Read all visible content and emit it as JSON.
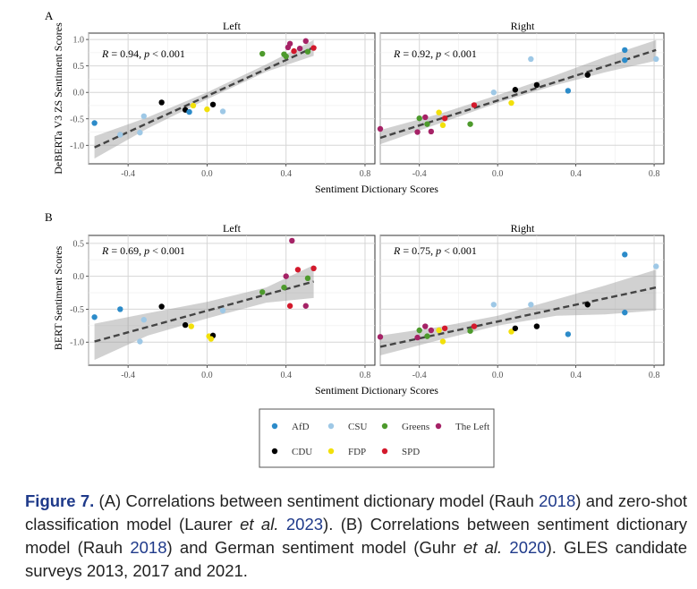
{
  "chart_data": [
    {
      "type": "scatter",
      "panel_label": "A",
      "ylabel": "DeBERTa V3 ZS Sentiment Scores",
      "xlabel": "Sentiment Dictionary Scores",
      "xlim": [
        -0.6,
        0.85
      ],
      "ylim": [
        -1.35,
        1.12
      ],
      "xticks": [
        "-0.4",
        "0.0",
        "0.4",
        "0.8"
      ],
      "xtick_values": [
        -0.4,
        0.0,
        0.4,
        0.8
      ],
      "yticks": [
        "1.0",
        "0.5",
        "0.0",
        "-0.5",
        "-1.0"
      ],
      "ytick_values": [
        1.0,
        0.5,
        0.0,
        -0.5,
        -1.0
      ],
      "facets": [
        {
          "title": "Left",
          "annotation": {
            "r": "0.94",
            "p": "0.001"
          },
          "fit": {
            "x0": -0.57,
            "x1": 0.54,
            "y0": -1.04,
            "y1": 0.85
          },
          "band": {
            "x": [
              -0.57,
              -0.3,
              0.0,
              0.3,
              0.54
            ],
            "lo": [
              -1.25,
              -0.68,
              -0.13,
              0.39,
              0.69
            ],
            "hi": [
              -0.83,
              -0.47,
              -0.0,
              0.53,
              0.99
            ]
          },
          "points": [
            {
              "x": -0.57,
              "y": -0.58,
              "party": "AfD"
            },
            {
              "x": -0.44,
              "y": -0.8,
              "party": "CSU"
            },
            {
              "x": -0.32,
              "y": -0.45,
              "party": "CSU"
            },
            {
              "x": -0.34,
              "y": -0.76,
              "party": "CSU"
            },
            {
              "x": -0.23,
              "y": -0.19,
              "party": "CDU"
            },
            {
              "x": -0.11,
              "y": -0.33,
              "party": "CDU"
            },
            {
              "x": -0.09,
              "y": -0.37,
              "party": "AfD"
            },
            {
              "x": -0.07,
              "y": -0.25,
              "party": "FDP"
            },
            {
              "x": 0.0,
              "y": -0.32,
              "party": "FDP"
            },
            {
              "x": 0.03,
              "y": -0.23,
              "party": "CDU"
            },
            {
              "x": 0.08,
              "y": -0.36,
              "party": "CSU"
            },
            {
              "x": 0.28,
              "y": 0.73,
              "party": "Greens"
            },
            {
              "x": 0.39,
              "y": 0.72,
              "party": "Greens"
            },
            {
              "x": 0.4,
              "y": 0.68,
              "party": "Greens"
            },
            {
              "x": 0.41,
              "y": 0.85,
              "party": "The Left"
            },
            {
              "x": 0.42,
              "y": 0.92,
              "party": "The Left"
            },
            {
              "x": 0.44,
              "y": 0.78,
              "party": "SPD"
            },
            {
              "x": 0.47,
              "y": 0.83,
              "party": "The Left"
            },
            {
              "x": 0.5,
              "y": 0.97,
              "party": "The Left"
            },
            {
              "x": 0.51,
              "y": 0.77,
              "party": "Greens"
            },
            {
              "x": 0.54,
              "y": 0.84,
              "party": "SPD"
            }
          ]
        },
        {
          "title": "Right",
          "annotation": {
            "r": "0.92",
            "p": "0.001"
          },
          "fit": {
            "x0": -0.6,
            "x1": 0.81,
            "y0": -0.86,
            "y1": 0.8
          },
          "band": {
            "x": [
              -0.6,
              -0.3,
              0.0,
              0.3,
              0.55,
              0.81
            ],
            "lo": [
              -0.98,
              -0.59,
              -0.2,
              0.14,
              0.38,
              0.6
            ],
            "hi": [
              -0.71,
              -0.41,
              -0.05,
              0.33,
              0.67,
              0.99
            ]
          },
          "points": [
            {
              "x": -0.6,
              "y": -0.69,
              "party": "The Left"
            },
            {
              "x": -0.41,
              "y": -0.75,
              "party": "The Left"
            },
            {
              "x": -0.4,
              "y": -0.49,
              "party": "Greens"
            },
            {
              "x": -0.37,
              "y": -0.47,
              "party": "The Left"
            },
            {
              "x": -0.36,
              "y": -0.6,
              "party": "Greens"
            },
            {
              "x": -0.34,
              "y": -0.74,
              "party": "The Left"
            },
            {
              "x": -0.3,
              "y": -0.38,
              "party": "FDP"
            },
            {
              "x": -0.28,
              "y": -0.62,
              "party": "FDP"
            },
            {
              "x": -0.27,
              "y": -0.49,
              "party": "SPD"
            },
            {
              "x": -0.14,
              "y": -0.6,
              "party": "Greens"
            },
            {
              "x": -0.12,
              "y": -0.24,
              "party": "SPD"
            },
            {
              "x": -0.02,
              "y": 0.0,
              "party": "CSU"
            },
            {
              "x": 0.07,
              "y": -0.2,
              "party": "FDP"
            },
            {
              "x": 0.09,
              "y": 0.05,
              "party": "CDU"
            },
            {
              "x": 0.17,
              "y": 0.63,
              "party": "CSU"
            },
            {
              "x": 0.2,
              "y": 0.14,
              "party": "CDU"
            },
            {
              "x": 0.36,
              "y": 0.03,
              "party": "AfD"
            },
            {
              "x": 0.46,
              "y": 0.33,
              "party": "CDU"
            },
            {
              "x": 0.65,
              "y": 0.8,
              "party": "AfD"
            },
            {
              "x": 0.65,
              "y": 0.61,
              "party": "AfD"
            },
            {
              "x": 0.81,
              "y": 0.63,
              "party": "CSU"
            }
          ]
        }
      ]
    },
    {
      "type": "scatter",
      "panel_label": "B",
      "ylabel": "BERT Sentiment Scores",
      "xlabel": "Sentiment Dictionary Scores",
      "xlim": [
        -0.6,
        0.85
      ],
      "ylim": [
        -1.35,
        0.62
      ],
      "xticks": [
        "-0.4",
        "0.0",
        "0.4",
        "0.8"
      ],
      "xtick_values": [
        -0.4,
        0.0,
        0.4,
        0.8
      ],
      "yticks": [
        "0.5",
        "0.0",
        "-0.5",
        "-1.0"
      ],
      "ytick_values": [
        0.5,
        0.0,
        -0.5,
        -1.0
      ],
      "facets": [
        {
          "title": "Left",
          "annotation": {
            "r": "0.69",
            "p": "0.001"
          },
          "fit": {
            "x0": -0.57,
            "x1": 0.54,
            "y0": -0.99,
            "y1": -0.08
          },
          "band": {
            "x": [
              -0.57,
              -0.3,
              0.0,
              0.3,
              0.54
            ],
            "lo": [
              -1.27,
              -0.9,
              -0.64,
              -0.4,
              -0.33
            ],
            "hi": [
              -0.72,
              -0.56,
              -0.39,
              -0.17,
              0.17
            ]
          },
          "points": [
            {
              "x": -0.57,
              "y": -0.62,
              "party": "AfD"
            },
            {
              "x": -0.44,
              "y": -0.5,
              "party": "AfD"
            },
            {
              "x": -0.32,
              "y": -0.66,
              "party": "CSU"
            },
            {
              "x": -0.34,
              "y": -0.99,
              "party": "CSU"
            },
            {
              "x": -0.23,
              "y": -0.46,
              "party": "CDU"
            },
            {
              "x": -0.11,
              "y": -0.74,
              "party": "CDU"
            },
            {
              "x": -0.08,
              "y": -0.76,
              "party": "FDP"
            },
            {
              "x": 0.01,
              "y": -0.91,
              "party": "FDP"
            },
            {
              "x": 0.03,
              "y": -0.9,
              "party": "CDU"
            },
            {
              "x": 0.02,
              "y": -0.95,
              "party": "FDP"
            },
            {
              "x": 0.08,
              "y": -0.52,
              "party": "CSU"
            },
            {
              "x": 0.28,
              "y": -0.24,
              "party": "Greens"
            },
            {
              "x": 0.39,
              "y": -0.17,
              "party": "Greens"
            },
            {
              "x": 0.4,
              "y": 0.0,
              "party": "The Left"
            },
            {
              "x": 0.42,
              "y": -0.45,
              "party": "SPD"
            },
            {
              "x": 0.43,
              "y": 0.54,
              "party": "The Left"
            },
            {
              "x": 0.46,
              "y": 0.1,
              "party": "SPD"
            },
            {
              "x": 0.5,
              "y": -0.45,
              "party": "The Left"
            },
            {
              "x": 0.51,
              "y": -0.03,
              "party": "Greens"
            },
            {
              "x": 0.54,
              "y": 0.12,
              "party": "SPD"
            }
          ]
        },
        {
          "title": "Right",
          "annotation": {
            "r": "0.75",
            "p": "0.001"
          },
          "fit": {
            "x0": -0.6,
            "x1": 0.81,
            "y0": -1.07,
            "y1": -0.17
          },
          "band": {
            "x": [
              -0.6,
              -0.3,
              0.0,
              0.3,
              0.55,
              0.81
            ],
            "lo": [
              -1.2,
              -0.97,
              -0.75,
              -0.6,
              -0.58,
              -0.52
            ],
            "hi": [
              -0.9,
              -0.77,
              -0.6,
              -0.35,
              -0.14,
              0.1
            ]
          },
          "points": [
            {
              "x": -0.6,
              "y": -0.92,
              "party": "The Left"
            },
            {
              "x": -0.41,
              "y": -0.93,
              "party": "The Left"
            },
            {
              "x": -0.4,
              "y": -0.82,
              "party": "Greens"
            },
            {
              "x": -0.37,
              "y": -0.76,
              "party": "The Left"
            },
            {
              "x": -0.36,
              "y": -0.91,
              "party": "Greens"
            },
            {
              "x": -0.34,
              "y": -0.82,
              "party": "The Left"
            },
            {
              "x": -0.3,
              "y": -0.82,
              "party": "FDP"
            },
            {
              "x": -0.28,
              "y": -0.99,
              "party": "FDP"
            },
            {
              "x": -0.27,
              "y": -0.79,
              "party": "SPD"
            },
            {
              "x": -0.14,
              "y": -0.83,
              "party": "Greens"
            },
            {
              "x": -0.12,
              "y": -0.76,
              "party": "SPD"
            },
            {
              "x": -0.02,
              "y": -0.43,
              "party": "CSU"
            },
            {
              "x": 0.07,
              "y": -0.84,
              "party": "FDP"
            },
            {
              "x": 0.09,
              "y": -0.79,
              "party": "CDU"
            },
            {
              "x": 0.17,
              "y": -0.43,
              "party": "CSU"
            },
            {
              "x": 0.2,
              "y": -0.76,
              "party": "CDU"
            },
            {
              "x": 0.36,
              "y": -0.88,
              "party": "AfD"
            },
            {
              "x": 0.46,
              "y": -0.43,
              "party": "CDU"
            },
            {
              "x": 0.65,
              "y": 0.33,
              "party": "AfD"
            },
            {
              "x": 0.65,
              "y": -0.55,
              "party": "AfD"
            },
            {
              "x": 0.81,
              "y": 0.15,
              "party": "CSU"
            }
          ]
        }
      ]
    }
  ],
  "annotation_text": {
    "r_symbol": "R",
    "p_symbol": "p"
  },
  "legend": {
    "items": [
      {
        "label": "AfD",
        "color": "#2C8BC9"
      },
      {
        "label": "CSU",
        "color": "#9EC8E6"
      },
      {
        "label": "Greens",
        "color": "#4D9A2C"
      },
      {
        "label": "The Left",
        "color": "#A52266"
      },
      {
        "label": "CDU",
        "color": "#000000"
      },
      {
        "label": "FDP",
        "color": "#F2E00A"
      },
      {
        "label": "SPD",
        "color": "#D3192C"
      }
    ]
  },
  "caption": {
    "label": "Figure 7.",
    "t1": " (A) Correlations between sentiment dictionary model (Rauh ",
    "ref1": "2018",
    "t2": ") and zero-shot classification model (Laurer ",
    "etal1": "et al.",
    "t3": " ",
    "ref2": "2023",
    "t4": "). (B) Correlations between sentiment dictionary model (Rauh ",
    "ref3": "2018",
    "t5": ") and German sentiment model (Guhr ",
    "etal2": "et al.",
    "t6": " ",
    "ref4": "2020",
    "t7": "). GLES candidate surveys 2013, 2017 and 2021."
  }
}
